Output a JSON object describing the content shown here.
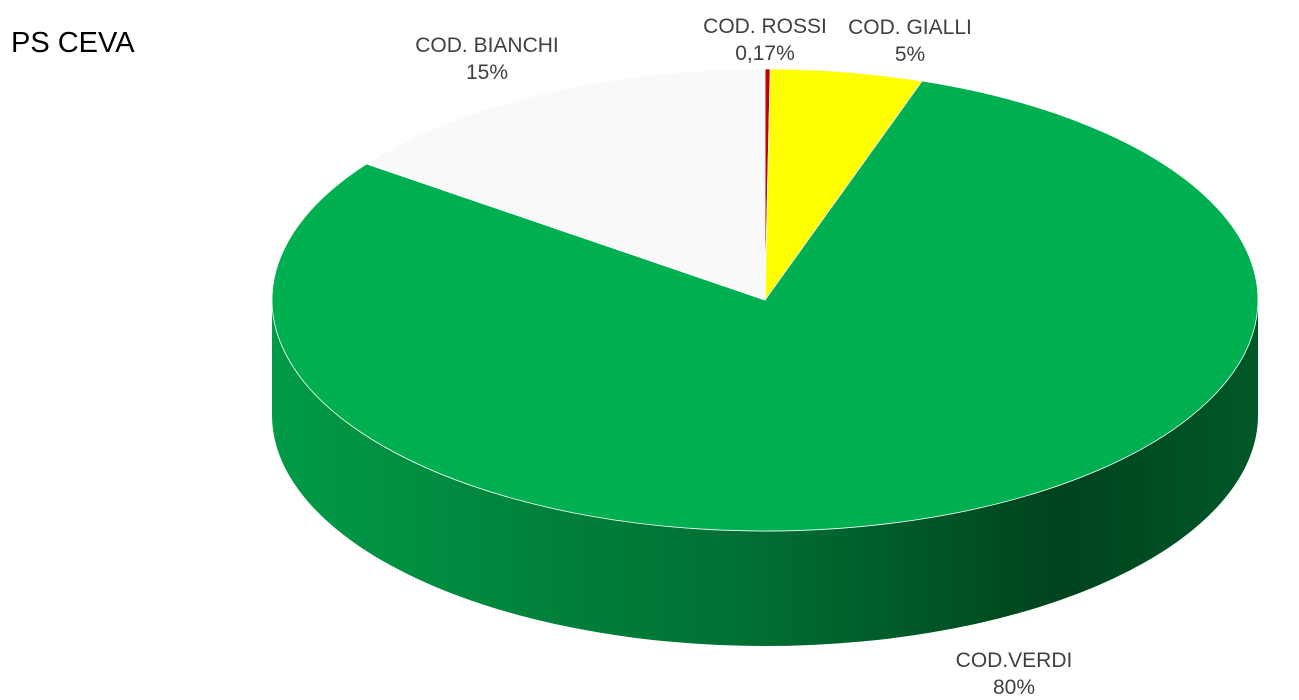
{
  "chart_data": {
    "type": "pie3d",
    "title": "PS CEVA",
    "categories": [
      "COD. ROSSI",
      "COD. GIALLI",
      "COD.VERDI",
      "COD. BIANCHI"
    ],
    "values": [
      0.17,
      5,
      80,
      15
    ],
    "value_labels": [
      "0,17%",
      "5%",
      "80%",
      "15%"
    ],
    "colors": [
      "#c00000",
      "#ffff00",
      "#00b050",
      "#f9f9f9"
    ]
  }
}
